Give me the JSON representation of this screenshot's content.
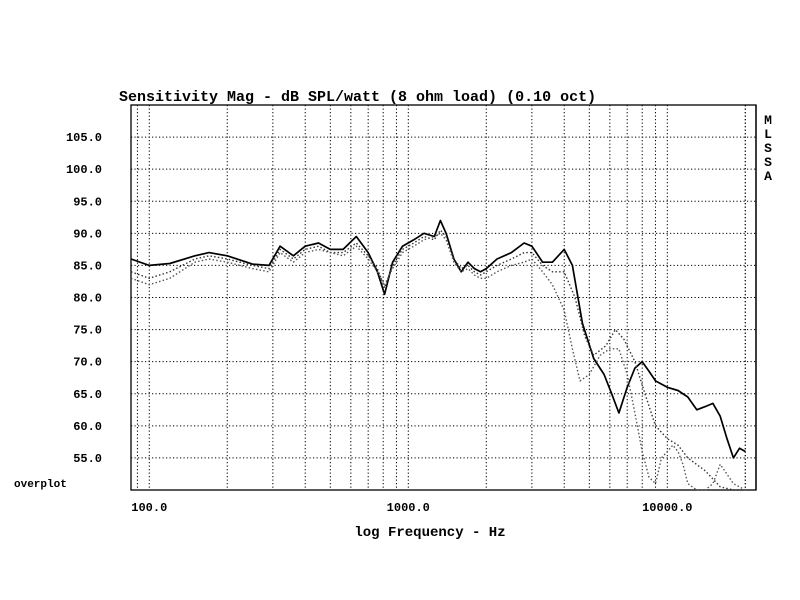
{
  "chart_data": {
    "type": "line",
    "title": "Sensitivity Mag - dB SPL/watt (8 ohm load) (0.10 oct)",
    "xlabel": "log Frequency - Hz",
    "ylabel": "",
    "xscale": "log",
    "xlim": [
      85,
      22000
    ],
    "ylim": [
      50,
      110
    ],
    "grid": true,
    "y_ticks": [
      "105.0",
      "100.0",
      "95.0",
      "90.0",
      "85.0",
      "80.0",
      "75.0",
      "70.0",
      "65.0",
      "60.0",
      "55.0"
    ],
    "y_tick_values": [
      105,
      100,
      95,
      90,
      85,
      80,
      75,
      70,
      65,
      60,
      55
    ],
    "y_bottom_label": "overplot",
    "x_ticks": [
      "100.0",
      "1000.0",
      "10000.0"
    ],
    "x_tick_values": [
      100,
      1000,
      10000
    ],
    "side_label": [
      "M",
      "L",
      "S",
      "S",
      "A"
    ],
    "series": [
      {
        "style": "solid",
        "x": [
          85,
          100,
          120,
          150,
          170,
          200,
          250,
          290,
          320,
          360,
          400,
          450,
          500,
          560,
          630,
          700,
          760,
          810,
          870,
          950,
          1050,
          1150,
          1260,
          1330,
          1400,
          1500,
          1600,
          1700,
          1800,
          1900,
          2000,
          2200,
          2500,
          2800,
          3000,
          3300,
          3600,
          4000,
          4300,
          4700,
          5200,
          5700,
          6100,
          6500,
          7000,
          7500,
          8000,
          8500,
          9000,
          10000,
          11000,
          12000,
          13000,
          14000,
          15000,
          16000,
          17000,
          18000,
          19000,
          20000
        ],
        "y": [
          86,
          85,
          85.3,
          86.5,
          87,
          86.5,
          85.2,
          85,
          88,
          86.5,
          88,
          88.5,
          87.5,
          87.5,
          89.5,
          87,
          84,
          80.5,
          85.5,
          88,
          89,
          90,
          89.5,
          92,
          90,
          86,
          84,
          85.5,
          84.5,
          84,
          84.5,
          86,
          87,
          88.5,
          88,
          85.5,
          85.5,
          87.5,
          85,
          76,
          70.5,
          68,
          65,
          62,
          66,
          69,
          70,
          68.5,
          67,
          66,
          65.5,
          64.5,
          62.5,
          63,
          63.5,
          61.5,
          58,
          55,
          56.5,
          56
        ],
        "color": "#000000"
      },
      {
        "style": "dotted",
        "x": [
          85,
          100,
          120,
          150,
          170,
          200,
          250,
          290,
          320,
          360,
          400,
          450,
          500,
          560,
          630,
          700,
          760,
          810,
          870,
          950,
          1050,
          1150,
          1260,
          1330,
          1400,
          1500,
          1600,
          1700,
          1800,
          1900,
          2000,
          2200,
          2500,
          2800,
          3000,
          3300,
          3600,
          4000,
          4400,
          4800,
          5200,
          5800,
          6300,
          6800,
          7500,
          8200,
          9000,
          10000,
          11000,
          12000,
          14000,
          16000,
          18000,
          20000
        ],
        "y": [
          84,
          83,
          84,
          86,
          86.5,
          86,
          85,
          84.5,
          87.5,
          86,
          87.5,
          88,
          87,
          87,
          88.5,
          86.5,
          84.5,
          81.5,
          85,
          87.5,
          88.5,
          89.5,
          89,
          90.5,
          89.5,
          86,
          84.5,
          85,
          84,
          83.5,
          84,
          85,
          86,
          87,
          87,
          85,
          84,
          84,
          80,
          74,
          71,
          72.5,
          75,
          73.5,
          70,
          65,
          60,
          58,
          57,
          55,
          53,
          50.5,
          50,
          50
        ],
        "color": "#333333"
      },
      {
        "style": "dotted",
        "x": [
          85,
          100,
          120,
          150,
          170,
          200,
          250,
          290,
          320,
          360,
          400,
          450,
          500,
          560,
          630,
          700,
          760,
          810,
          870,
          950,
          1050,
          1150,
          1260,
          1330,
          1400,
          1500,
          1600,
          1700,
          1800,
          1900,
          2000,
          2200,
          2500,
          2800,
          3000,
          3300,
          3600,
          4000,
          4300,
          4600,
          5000,
          5500,
          6000,
          6500,
          7000,
          7500,
          8000,
          8500,
          9000,
          9500,
          10000,
          10500,
          11000,
          11500,
          12000,
          13000,
          14000,
          15000,
          16000,
          18000,
          20000
        ],
        "y": [
          83,
          82,
          83,
          85.5,
          86,
          85.5,
          84.5,
          84,
          87,
          85.5,
          87,
          87.5,
          87,
          86.5,
          88,
          86,
          84,
          82,
          84.5,
          87,
          88,
          89,
          89.5,
          90,
          89,
          85.5,
          84,
          84.5,
          83.5,
          83,
          83,
          84,
          85,
          85.5,
          86,
          84,
          82,
          78,
          72,
          67,
          68,
          71,
          72,
          72,
          68,
          62,
          56,
          52,
          51,
          55,
          56,
          57,
          56,
          54,
          51,
          50,
          50,
          51,
          54,
          51,
          50
        ],
        "color": "#555555"
      }
    ]
  }
}
